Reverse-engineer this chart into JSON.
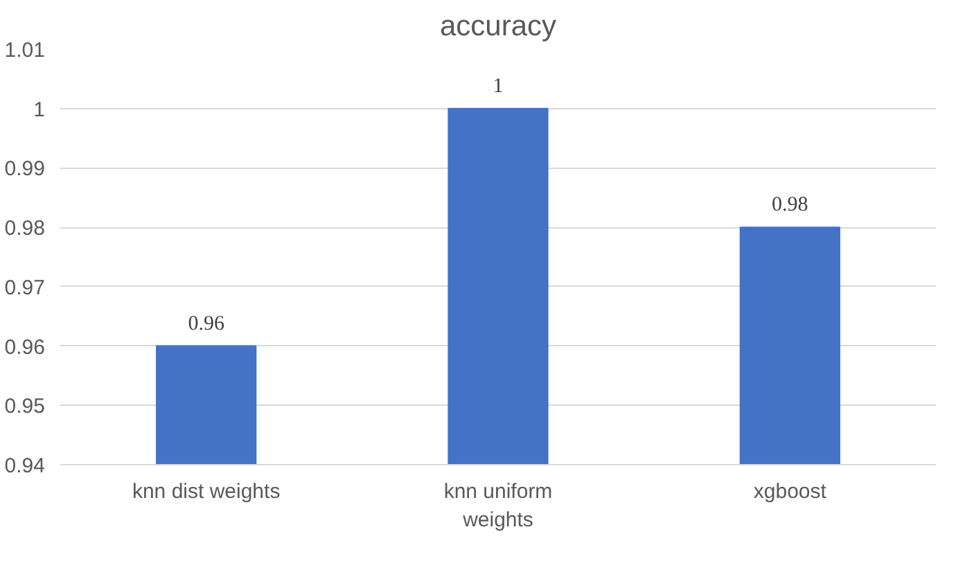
{
  "chart_data": {
    "type": "bar",
    "title": "accuracy",
    "categories": [
      "knn dist weights",
      "knn uniform weights",
      "xgboost"
    ],
    "values": [
      0.96,
      1,
      0.98
    ],
    "color": "#4472c4",
    "ylim": [
      0.94,
      1.01
    ],
    "yticks": [
      0.94,
      0.95,
      0.96,
      0.97,
      0.98,
      0.99,
      1,
      1.01
    ],
    "grid": "y",
    "data_labels": true
  }
}
